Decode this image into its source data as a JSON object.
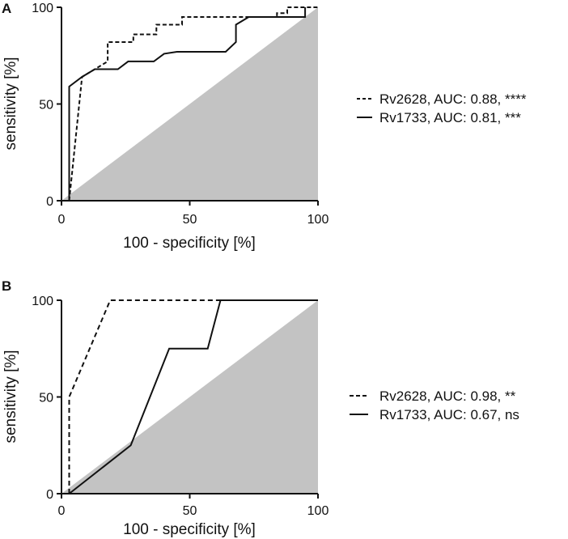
{
  "chart_data": [
    {
      "type": "line",
      "panel_label": "A",
      "xlabel": "100 - specificity [%]",
      "ylabel": "sensitivity [%]",
      "xlim": [
        0,
        100
      ],
      "ylim": [
        0,
        100
      ],
      "x_ticks": [
        "0",
        "50",
        "100"
      ],
      "y_ticks": [
        "0",
        "50",
        "100"
      ],
      "reference_area": "gray triangle below diagonal",
      "legend_position": "right",
      "series": [
        {
          "name": "Rv2628",
          "label": "Rv2628, AUC: 0.88, ****",
          "style": "dashed",
          "points": [
            [
              3,
              0
            ],
            [
              8,
              64
            ],
            [
              8,
              64
            ],
            [
              18,
              72
            ],
            [
              18,
              82
            ],
            [
              28,
              82
            ],
            [
              28,
              86
            ],
            [
              37,
              86
            ],
            [
              37,
              91
            ],
            [
              47,
              91
            ],
            [
              47,
              95
            ],
            [
              84,
              95
            ],
            [
              84,
              97
            ],
            [
              88,
              97
            ],
            [
              88,
              100
            ],
            [
              100,
              100
            ]
          ]
        },
        {
          "name": "Rv1733",
          "label": "Rv1733, AUC: 0.81, ***",
          "style": "solid",
          "points": [
            [
              3,
              0
            ],
            [
              3,
              59
            ],
            [
              8,
              64
            ],
            [
              8,
              64
            ],
            [
              13,
              68
            ],
            [
              22,
              68
            ],
            [
              26,
              72
            ],
            [
              36,
              72
            ],
            [
              40,
              76
            ],
            [
              45,
              77
            ],
            [
              64,
              77
            ],
            [
              68,
              82
            ],
            [
              68,
              91
            ],
            [
              73,
              95
            ],
            [
              95,
              95
            ],
            [
              95,
              100
            ]
          ]
        }
      ]
    },
    {
      "type": "line",
      "panel_label": "B",
      "xlabel": "100 - specificity [%]",
      "ylabel": "sensitivity [%]",
      "xlim": [
        0,
        100
      ],
      "ylim": [
        0,
        100
      ],
      "x_ticks": [
        "0",
        "50",
        "100"
      ],
      "y_ticks": [
        "0",
        "50",
        "100"
      ],
      "reference_area": "gray triangle below diagonal",
      "legend_position": "right",
      "series": [
        {
          "name": "Rv2628",
          "label": "Rv2628, AUC: 0.98, **",
          "style": "dashed",
          "points": [
            [
              3,
              0
            ],
            [
              3,
              50
            ],
            [
              19,
              100
            ],
            [
              100,
              100
            ]
          ]
        },
        {
          "name": "Rv1733",
          "label": "Rv1733, AUC: 0.67, ns",
          "style": "solid",
          "points": [
            [
              3,
              0
            ],
            [
              27,
              25
            ],
            [
              42,
              75
            ],
            [
              57,
              75
            ],
            [
              62,
              100
            ],
            [
              100,
              100
            ]
          ]
        }
      ]
    }
  ]
}
